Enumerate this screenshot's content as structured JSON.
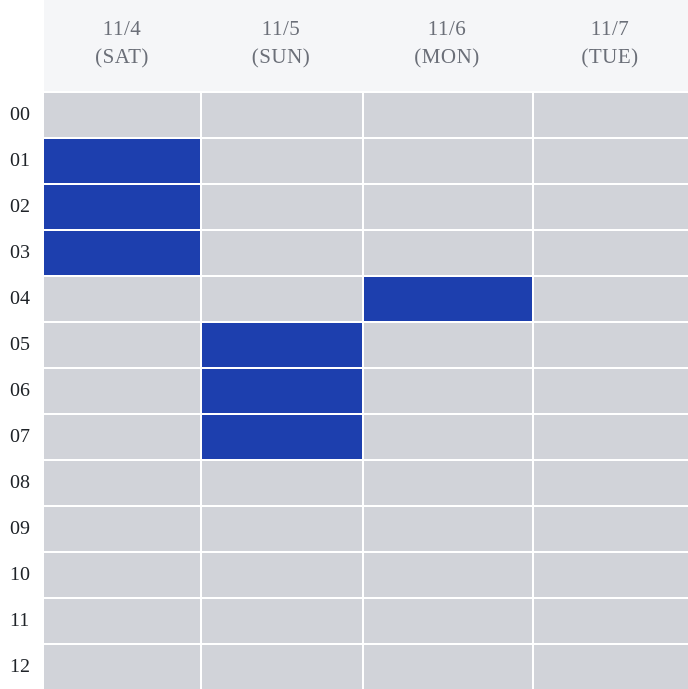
{
  "days": [
    {
      "date": "11/4",
      "weekday": "(SAT)"
    },
    {
      "date": "11/5",
      "weekday": "(SUN)"
    },
    {
      "date": "11/6",
      "weekday": "(MON)"
    },
    {
      "date": "11/7",
      "weekday": "(TUE)"
    }
  ],
  "hours": [
    "00",
    "01",
    "02",
    "03",
    "04",
    "05",
    "06",
    "07",
    "08",
    "09",
    "10",
    "11",
    "12"
  ],
  "selected_slots": [
    {
      "day": "11/4",
      "hour": "01"
    },
    {
      "day": "11/4",
      "hour": "02"
    },
    {
      "day": "11/4",
      "hour": "03"
    },
    {
      "day": "11/6",
      "hour": "04"
    },
    {
      "day": "11/5",
      "hour": "05"
    },
    {
      "day": "11/5",
      "hour": "06"
    },
    {
      "day": "11/5",
      "hour": "07"
    }
  ],
  "colors": {
    "slot_empty": "#d1d3d9",
    "slot_selected": "#1d3fae",
    "header_bg": "#f5f6f8",
    "header_text": "#6b6f78"
  }
}
